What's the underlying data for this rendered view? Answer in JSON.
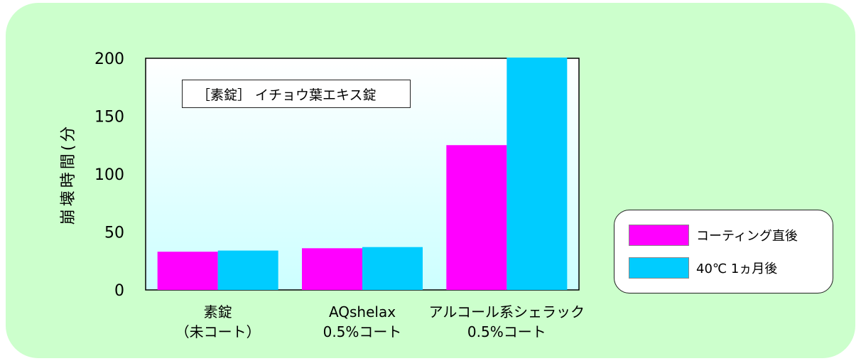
{
  "chart_data": {
    "type": "bar",
    "ylabel": "崩壊時間(分",
    "ylim": [
      0,
      200
    ],
    "yticks": [
      "0",
      "50",
      "100",
      "150",
      "200"
    ],
    "categories": [
      [
        "素錠",
        "（未コート）"
      ],
      [
        "AQshelax",
        "0.5%コート"
      ],
      [
        "アルコール系シェラック",
        "0.5%コート"
      ]
    ],
    "series": [
      {
        "name": "コーティング直後",
        "color": "#ff00ff",
        "values": [
          33,
          36,
          125
        ]
      },
      {
        "name": "40℃  1ヵ月後",
        "color": "#00ccff",
        "values": [
          34,
          37,
          201
        ]
      }
    ],
    "annotation": "［素錠］ イチョウ葉エキス錠",
    "legend_position": "right"
  }
}
